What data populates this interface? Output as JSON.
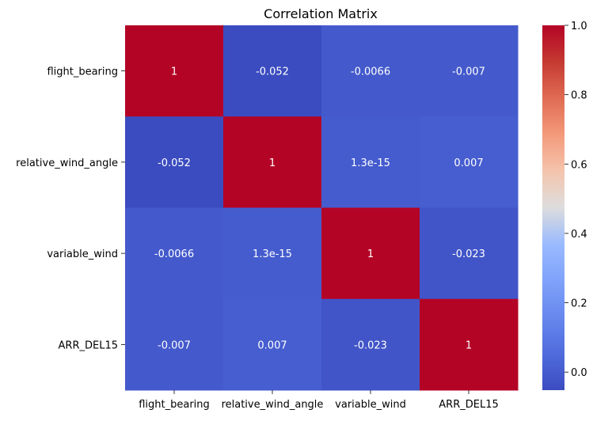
{
  "chart_data": {
    "type": "heatmap",
    "title": "Correlation Matrix",
    "xlabel": "",
    "ylabel": "",
    "x_categories": [
      "flight_bearing",
      "relative_wind_angle",
      "variable_wind",
      "ARR_DEL15"
    ],
    "y_categories": [
      "flight_bearing",
      "relative_wind_angle",
      "variable_wind",
      "ARR_DEL15"
    ],
    "values": [
      [
        1,
        -0.052,
        -0.0066,
        -0.007
      ],
      [
        -0.052,
        1,
        1.3e-15,
        0.007
      ],
      [
        -0.0066,
        1.3e-15,
        1,
        -0.023
      ],
      [
        -0.007,
        0.007,
        -0.023,
        1
      ]
    ],
    "annotations": [
      [
        "1",
        "-0.052",
        "-0.0066",
        "-0.007"
      ],
      [
        "-0.052",
        "1",
        "1.3e-15",
        "0.007"
      ],
      [
        "-0.0066",
        "1.3e-15",
        "1",
        "-0.023"
      ],
      [
        "-0.007",
        "0.007",
        "-0.023",
        "1"
      ]
    ],
    "colormap": "coolwarm",
    "vmin": -0.052,
    "vmax": 1.0,
    "colorbar_ticks": [
      "0.0",
      "0.2",
      "0.4",
      "0.6",
      "0.8",
      "1.0"
    ],
    "colorbar_tick_values": [
      0.0,
      0.2,
      0.4,
      0.6,
      0.8,
      1.0
    ],
    "grid": false
  }
}
